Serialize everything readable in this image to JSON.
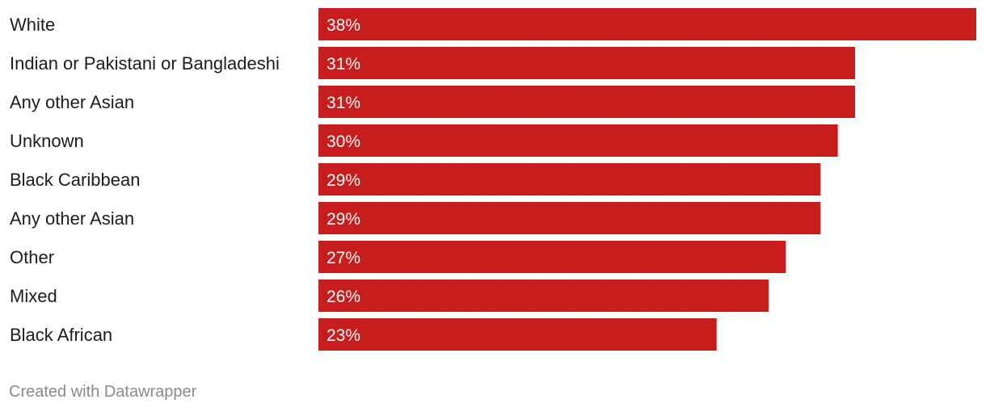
{
  "chart_data": {
    "type": "bar",
    "orientation": "horizontal",
    "categories": [
      "White",
      "Indian or Pakistani or Bangladeshi",
      "Any other Asian",
      "Unknown",
      "Black Caribbean",
      "Any other Asian",
      "Other",
      "Mixed",
      "Black African"
    ],
    "values": [
      38,
      31,
      31,
      30,
      29,
      29,
      27,
      26,
      23
    ],
    "value_labels": [
      "38%",
      "31%",
      "31%",
      "30%",
      "29%",
      "29%",
      "27%",
      "26%",
      "23%"
    ],
    "unit": "%",
    "xlim": [
      0,
      38
    ],
    "grid": false,
    "legend": "none",
    "bar_color": "#c71d1d"
  },
  "footer": {
    "credit": "Created with Datawrapper"
  }
}
